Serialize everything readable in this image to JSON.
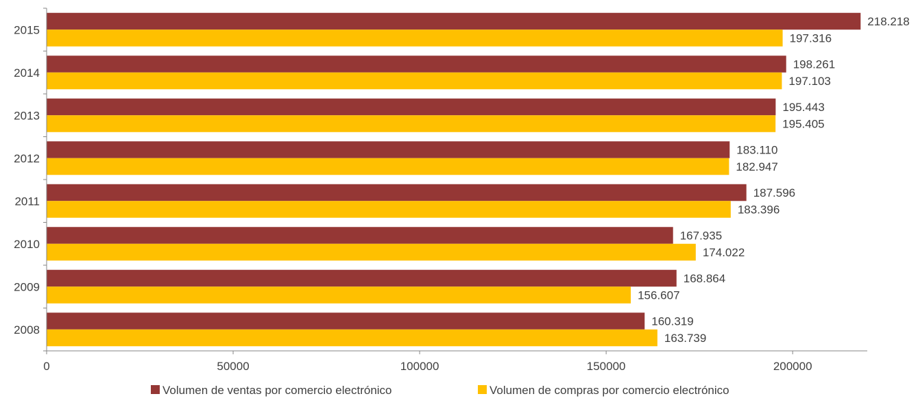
{
  "chart_data": {
    "type": "bar",
    "orientation": "horizontal",
    "title": "",
    "xlabel": "",
    "ylabel": "",
    "categories": [
      "2015",
      "2014",
      "2013",
      "2012",
      "2011",
      "2010",
      "2009",
      "2008"
    ],
    "series": [
      {
        "name": "Volumen de ventas por comercio electrónico",
        "color": "#953735",
        "values": [
          218218,
          198261,
          195443,
          183110,
          187596,
          167935,
          168864,
          160319
        ],
        "labels": [
          "218.218",
          "198.261",
          "195.443",
          "183.110",
          "187.596",
          "167.935",
          "168.864",
          "160.319"
        ]
      },
      {
        "name": "Volumen de compras por comercio electrónico",
        "color": "#FFC000",
        "values": [
          197316,
          197103,
          195405,
          182947,
          183396,
          174022,
          156607,
          163739
        ],
        "labels": [
          "197.316",
          "197.103",
          "195.405",
          "182.947",
          "183.396",
          "174.022",
          "156.607",
          "163.739"
        ]
      }
    ],
    "xlim": [
      0,
      220000
    ],
    "xticks": [
      0,
      50000,
      100000,
      150000,
      200000
    ],
    "xtick_labels": [
      "0",
      "50000",
      "100000",
      "150000",
      "200000"
    ],
    "grid": false,
    "legend_position": "bottom"
  }
}
